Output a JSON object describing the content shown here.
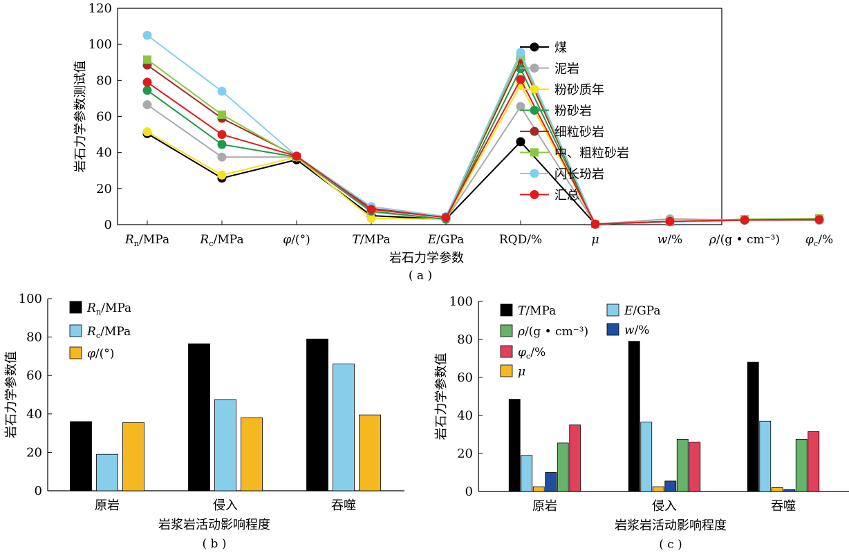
{
  "chart_data": [
    {
      "id": "a",
      "type": "line",
      "panel_label": "( a )",
      "xlabel": "岩石力学参数",
      "ylabel": "岩石力学参数测试值",
      "ylim": [
        0,
        120
      ],
      "yticks": [
        "0",
        "20",
        "40",
        "60",
        "80",
        "100",
        "120"
      ],
      "categories": [
        {
          "main": "R",
          "sub": "n",
          "rest": "/MPa",
          "italic": true
        },
        {
          "main": "R",
          "sub": "c",
          "rest": "/MPa",
          "italic": true
        },
        {
          "main": "φ",
          "sub": "",
          "rest": "/(°)",
          "italic": true
        },
        {
          "main": "T",
          "sub": "",
          "rest": "/MPa",
          "italic": true
        },
        {
          "main": "E",
          "sub": "",
          "rest": "/GPa",
          "italic": true
        },
        {
          "main": "RQD/%",
          "sub": "",
          "rest": "",
          "italic": false
        },
        {
          "main": "μ",
          "sub": "",
          "rest": "",
          "italic": true
        },
        {
          "main": "w",
          "sub": "",
          "rest": "/%",
          "italic": true
        },
        {
          "main": "ρ",
          "sub": "",
          "rest": "/(g • cm⁻³)",
          "italic": true
        },
        {
          "main": "φ",
          "sub": "c",
          "rest": "/%",
          "italic": true
        }
      ],
      "legend_position": "right",
      "series": [
        {
          "name": "煤",
          "color": "#000000",
          "marker": "circle",
          "values": [
            50.5,
            25.8,
            36,
            5,
            3,
            46,
            0.3,
            null,
            null,
            null
          ]
        },
        {
          "name": "泥岩",
          "color": "#aaaaaa",
          "marker": "circle",
          "values": [
            66.5,
            37.5,
            37.5,
            7,
            3,
            65.5,
            0.3,
            3.2,
            2.5,
            2.5
          ]
        },
        {
          "name": "粉砂质年",
          "color": "#f5e320",
          "marker": "circle",
          "values": [
            51.5,
            27.5,
            37.5,
            3.5,
            3,
            77.5,
            0.3,
            1.5,
            2.5,
            3
          ]
        },
        {
          "name": "粉砂岩",
          "color": "#1d9a4b",
          "marker": "circle",
          "values": [
            74.5,
            44.5,
            37.5,
            7.5,
            3,
            86.5,
            0.3,
            1.5,
            2.5,
            2.8
          ]
        },
        {
          "name": "细粒砂岩",
          "color": "#a52a22",
          "marker": "circle",
          "values": [
            88.5,
            59,
            38,
            9,
            4,
            91.5,
            0.3,
            1.8,
            2.5,
            2.5
          ]
        },
        {
          "name": "中、粗粒砂岩",
          "color": "#8cc63f",
          "marker": "square",
          "values": [
            91.5,
            61,
            37.5,
            8.5,
            4,
            94,
            0.3,
            1.5,
            3,
            3.5
          ]
        },
        {
          "name": "闪长玢岩",
          "color": "#7fd0f0",
          "marker": "circle",
          "values": [
            105,
            74,
            38,
            10,
            4.5,
            95.5,
            0.3,
            1.5,
            2.6,
            2.6
          ]
        },
        {
          "name": "汇总",
          "color": "#e31a1c",
          "marker": "circle",
          "values": [
            79,
            50,
            38,
            8.5,
            4,
            80.5,
            0.3,
            1.8,
            2.6,
            2.8
          ]
        }
      ]
    },
    {
      "id": "b",
      "type": "bar",
      "panel_label": "( b )",
      "xlabel": "岩浆岩活动影响程度",
      "ylabel": "岩石力学参数值",
      "ylim": [
        0,
        100
      ],
      "yticks": [
        "0",
        "20",
        "40",
        "60",
        "80",
        "100"
      ],
      "categories": [
        "原岩",
        "侵入",
        "吞噬"
      ],
      "series": [
        {
          "name": {
            "main": "R",
            "sub": "n",
            "rest": "/MPa"
          },
          "color": "#000000",
          "values": [
            36,
            76.5,
            79
          ]
        },
        {
          "name": {
            "main": "R",
            "sub": "c",
            "rest": "/MPa"
          },
          "color": "#87ceeb",
          "values": [
            19,
            47.5,
            66
          ]
        },
        {
          "name": {
            "main": "φ",
            "sub": "",
            "rest": "/(°)"
          },
          "color": "#f5b820",
          "values": [
            35.5,
            38,
            39.5
          ]
        }
      ]
    },
    {
      "id": "c",
      "type": "bar",
      "panel_label": "( c )",
      "xlabel": "岩浆岩活动影响程度",
      "ylabel": "岩石力学参数值",
      "ylim": [
        0,
        100
      ],
      "yticks": [
        "0",
        "20",
        "40",
        "60",
        "80",
        "100"
      ],
      "categories": [
        "原岩",
        "侵入",
        "吞噬"
      ],
      "series": [
        {
          "name": {
            "main": "T",
            "sub": "",
            "rest": "/MPa"
          },
          "color": "#000000",
          "values": [
            48.5,
            79,
            68
          ]
        },
        {
          "name": {
            "main": "E",
            "sub": "",
            "rest": "/GPa"
          },
          "color": "#87ceeb",
          "values": [
            19,
            36.5,
            37
          ]
        },
        {
          "name": {
            "main": "μ",
            "sub": "",
            "rest": ""
          },
          "color": "#f5b820",
          "values": [
            2.5,
            2.5,
            2
          ]
        },
        {
          "name": {
            "main": "w",
            "sub": "",
            "rest": "/%"
          },
          "color": "#1f4e9e",
          "values": [
            10,
            5.5,
            1
          ]
        },
        {
          "name": {
            "main": "ρ",
            "sub": "",
            "rest": "/(g • cm⁻³)"
          },
          "color": "#66b36a",
          "values": [
            25.5,
            27.5,
            27.5
          ]
        },
        {
          "name": {
            "main": "φ",
            "sub": "c",
            "rest": "/%"
          },
          "color": "#e0405a",
          "values": [
            35,
            26,
            31.5
          ]
        }
      ],
      "legend_order": [
        0,
        1,
        4,
        3,
        5,
        2
      ]
    }
  ]
}
